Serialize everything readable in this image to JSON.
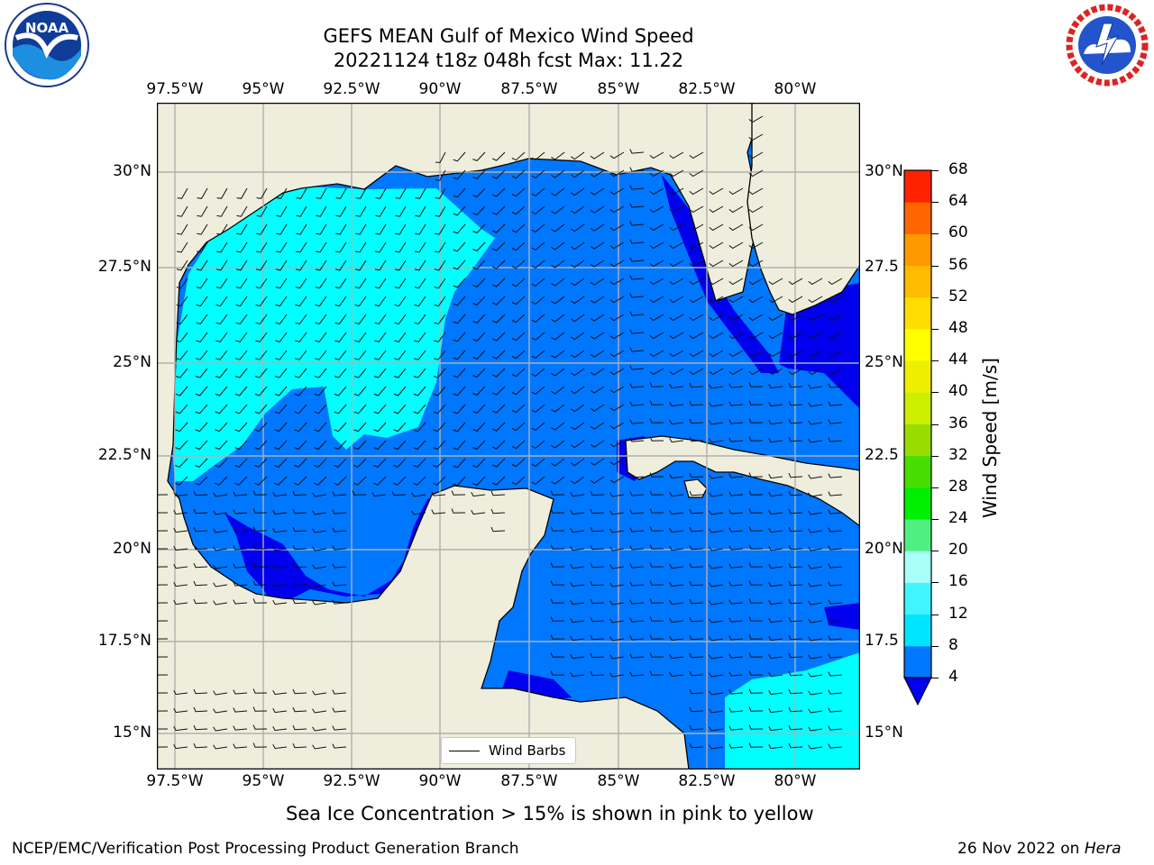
{
  "title": {
    "line1": "GEFS MEAN Gulf of Mexico Wind Speed",
    "line2": "20221124 t18z 048h fcst   Max: 11.22"
  },
  "lon_labels": [
    "97.5°W",
    "95°W",
    "92.5°W",
    "90°W",
    "87.5°W",
    "85°W",
    "82.5°W",
    "80°W"
  ],
  "lat_labels_left": [
    "30°N",
    "27.5°N",
    "25°N",
    "22.5°N",
    "20°N",
    "17.5°N",
    "15°N"
  ],
  "lat_labels_right": [
    "30°N",
    "27.5",
    "25°N",
    "22.5",
    "20°N",
    "17.5",
    "15°N"
  ],
  "colorbar": {
    "label": "Wind Speed [m/s]",
    "ticks": [
      "4",
      "8",
      "12",
      "16",
      "20",
      "24",
      "28",
      "32",
      "36",
      "40",
      "44",
      "48",
      "52",
      "56",
      "60",
      "64",
      "68"
    ],
    "colors": [
      "#0077ff",
      "#00e5ff",
      "#40f5ff",
      "#a8fff8",
      "#50f080",
      "#00ee00",
      "#48dd00",
      "#99dd00",
      "#ccee00",
      "#eeee00",
      "#ffff00",
      "#ffdd00",
      "#ffbb00",
      "#ff9900",
      "#ff6600",
      "#ff2200"
    ],
    "under_color": "#0000ee"
  },
  "map_colors": {
    "land": "#efeedd",
    "sea_4_8": "#0077ff",
    "sea_8_12": "#00ffff",
    "sea_lt4": "#0000ee"
  },
  "legend": {
    "label": "Wind Barbs"
  },
  "caption": "Sea Ice Concentration > 15% is shown in pink to yellow",
  "footer": {
    "left": "NCEP/EMC/Verification Post Processing Product Generation Branch",
    "right_prefix": "26 Nov 2022 on ",
    "right_host": "Hera"
  },
  "logos": {
    "left": "NOAA",
    "right": "NATIONAL WEATHER SERVICE"
  }
}
